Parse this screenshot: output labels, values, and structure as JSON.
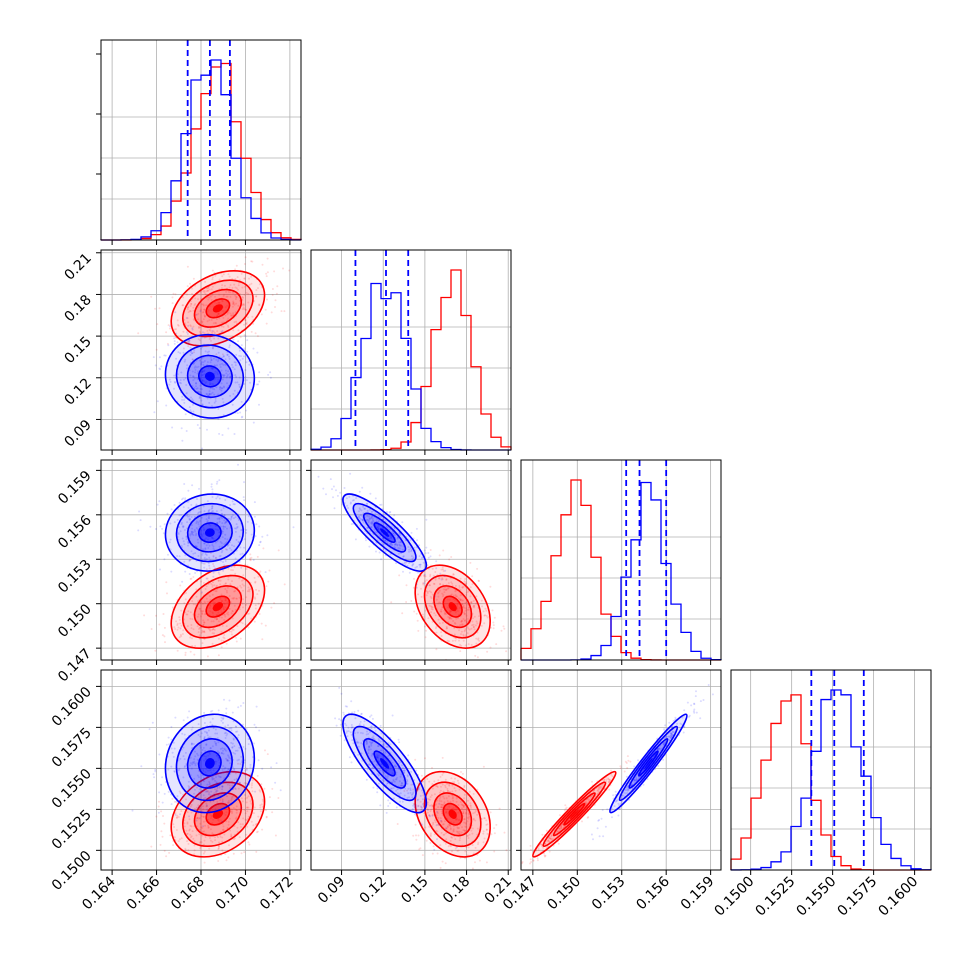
{
  "chart_data": {
    "type": "corner",
    "grid": true,
    "colors": {
      "red": "#ff0000",
      "blue": "#0000ff"
    },
    "series": [
      {
        "color": "red"
      },
      {
        "color": "blue"
      }
    ],
    "parameters": [
      {
        "range": [
          0.1635,
          0.1725
        ],
        "ticks": [
          "0.164",
          "0.166",
          "0.168",
          "0.170",
          "0.172"
        ]
      },
      {
        "range": [
          0.068,
          0.212
        ],
        "ticks": [
          "0.09",
          "0.12",
          "0.15",
          "0.18",
          "0.21"
        ]
      },
      {
        "range": [
          0.1462,
          0.1597
        ],
        "ticks": [
          "0.147",
          "0.150",
          "0.153",
          "0.156",
          "0.159"
        ]
      },
      {
        "range": [
          0.1488,
          0.161
        ],
        "ticks": [
          "0.1500",
          "0.1525",
          "0.1550",
          "0.1575",
          "0.1600"
        ]
      }
    ],
    "diagonal_quantiles": [
      [
        0.1674,
        0.1684,
        0.1693
      ],
      [
        0.1,
        0.122,
        0.138
      ],
      [
        0.1533,
        0.1542,
        0.156
      ],
      [
        0.1537,
        0.1551,
        0.1569
      ]
    ],
    "marginals": {
      "red": {
        "mean": [
          0.16876,
          0.17,
          0.1498,
          0.1522
        ],
        "sd": [
          0.00105,
          0.0135,
          0.0014,
          0.0013
        ]
      },
      "blue": {
        "mean": [
          0.1684,
          0.121,
          0.1548,
          0.1553
        ],
        "sd": [
          0.001,
          0.015,
          0.0013,
          0.0015
        ]
      }
    },
    "pairs": {
      "1-0": {
        "red_rho": 0.35,
        "blue_rho": -0.05
      },
      "2-0": {
        "red_rho": 0.4,
        "blue_rho": 0.05
      },
      "2-1": {
        "red_rho": -0.35,
        "blue_rho": -0.85
      },
      "3-0": {
        "red_rho": 0.3,
        "blue_rho": 0.1
      },
      "3-1": {
        "red_rho": -0.3,
        "blue_rho": -0.8
      },
      "3-2": {
        "red_rho": 0.97,
        "blue_rho": 0.97
      }
    }
  }
}
